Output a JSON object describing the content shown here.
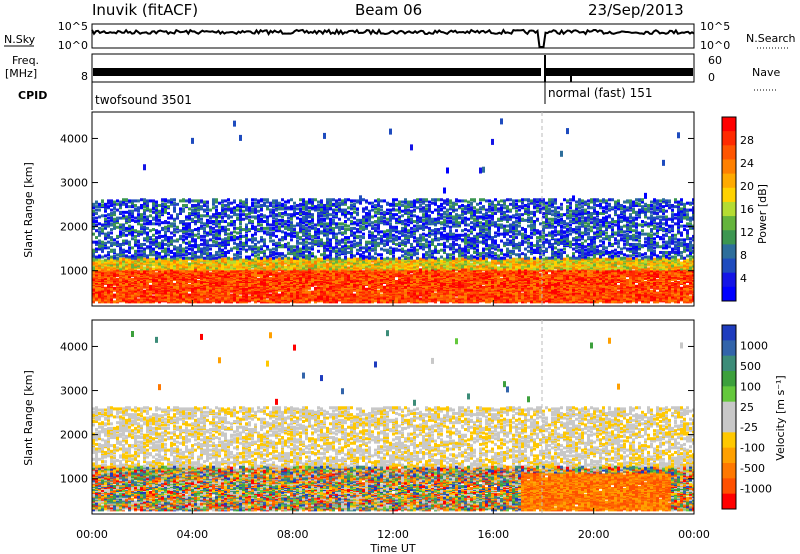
{
  "header": {
    "station": "Inuvik (fitACF)",
    "beam": "Beam 06",
    "date": "23/Sep/2013"
  },
  "top_panels": {
    "nsky_label": "N.Sky",
    "nsky_ticks": [
      "10^5",
      "10^0"
    ],
    "nsearch_label": "N.Search",
    "nsearch_ticks": [
      "10^5",
      "10^0"
    ],
    "freq_label_1": "Freq.",
    "freq_label_2": "[MHz]",
    "freq_tick": "8",
    "nave_label": "Nave",
    "nave_ticks": [
      "60",
      "0"
    ],
    "cpid_label": "CPID",
    "cpid_segments": [
      {
        "name": "twofsound 3501",
        "start_h": 0,
        "end_h": 18
      },
      {
        "name": "normal (fast) 151",
        "start_h": 18,
        "end_h": 24
      }
    ]
  },
  "chart_data": [
    {
      "type": "heatmap",
      "title": "Power",
      "ylabel": "Slant Range [km]",
      "xlabel": "Time UT",
      "xlim": [
        0,
        24
      ],
      "ylim": [
        200,
        4600
      ],
      "x_ticks": [
        "00:00",
        "04:00",
        "08:00",
        "12:00",
        "16:00",
        "20:00",
        "00:00"
      ],
      "y_ticks": [
        "1000",
        "2000",
        "3000",
        "4000"
      ],
      "colorbar": {
        "label": "Power [dB]",
        "ticks": [
          "28",
          "24",
          "20",
          "16",
          "12",
          "8",
          "4"
        ],
        "colors": [
          "#ff0000",
          "#ff2a00",
          "#ff5500",
          "#ff8000",
          "#ffaa00",
          "#ffd200",
          "#b4dc32",
          "#64b43c",
          "#3c9650",
          "#2d6e9b",
          "#1e4bbe",
          "#1414e6",
          "#0000ff"
        ]
      },
      "bands": [
        {
          "label": "lower echo band",
          "range_km": [
            450,
            1150
          ],
          "intensity_db": 26
        },
        {
          "label": "upper echo band",
          "range_km": [
            1200,
            2500
          ],
          "intensity_db": 8
        }
      ]
    },
    {
      "type": "heatmap",
      "title": "Velocity",
      "ylabel": "Slant Range [km]",
      "xlabel": "Time UT",
      "xlim": [
        0,
        24
      ],
      "ylim": [
        200,
        4600
      ],
      "x_ticks": [
        "00:00",
        "04:00",
        "08:00",
        "12:00",
        "16:00",
        "20:00",
        "00:00"
      ],
      "y_ticks": [
        "1000",
        "2000",
        "3000",
        "4000"
      ],
      "colorbar": {
        "label": "Velocity [m s⁻¹]",
        "ticks": [
          "1000",
          "500",
          "100",
          "25",
          "-25",
          "-100",
          "-500",
          "-1000"
        ],
        "colors": [
          "#1e3cbe",
          "#3264aa",
          "#3c8c78",
          "#3ca03c",
          "#64c83c",
          "#c8c8c8",
          "#c8c8c8",
          "#ffc800",
          "#ffa000",
          "#ff7800",
          "#ff5000",
          "#ff0000"
        ]
      },
      "bands": [
        {
          "label": "lower echo band",
          "range_km": [
            450,
            1150
          ],
          "velocity_ms": -100
        },
        {
          "label": "upper echo band",
          "range_km": [
            1200,
            2500
          ],
          "velocity_ms": 0
        }
      ]
    }
  ]
}
